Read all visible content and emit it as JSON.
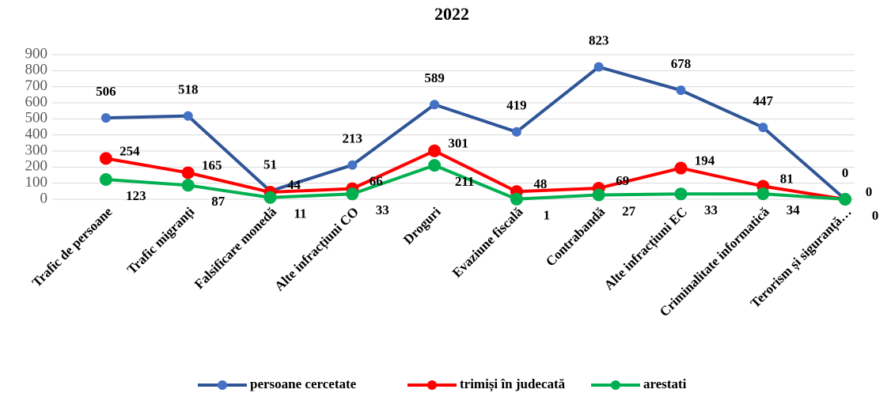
{
  "chart_data": {
    "type": "line",
    "title": "2022",
    "categories": [
      "Trafic de persoane",
      "Trafic migranți",
      "Falsificare monedă",
      "Alte infracțiuni CO",
      "Droguri",
      "Evaziune fiscală",
      "Contrabandă",
      "Alte infracțiuni EC",
      "Criminalitate informatică",
      "Terorism și siguranță…"
    ],
    "series": [
      {
        "name": "persoane cercetate",
        "color": "#2f5597",
        "marker_color": "#4472c4",
        "values": [
          506,
          518,
          51,
          213,
          589,
          419,
          823,
          678,
          447,
          0
        ]
      },
      {
        "name": "trimiși în judecată",
        "color": "#ff0000",
        "marker_color": "#ff0000",
        "values": [
          254,
          165,
          44,
          66,
          301,
          48,
          69,
          194,
          81,
          0
        ]
      },
      {
        "name": "arestati",
        "color": "#00b050",
        "marker_color": "#00b050",
        "values": [
          123,
          87,
          11,
          33,
          211,
          1,
          27,
          33,
          34,
          0
        ]
      }
    ],
    "ylim": [
      0,
      900
    ],
    "yticks": [
      0,
      100,
      200,
      300,
      400,
      500,
      600,
      700,
      800,
      900
    ],
    "grid": true,
    "legend": "bottom"
  }
}
